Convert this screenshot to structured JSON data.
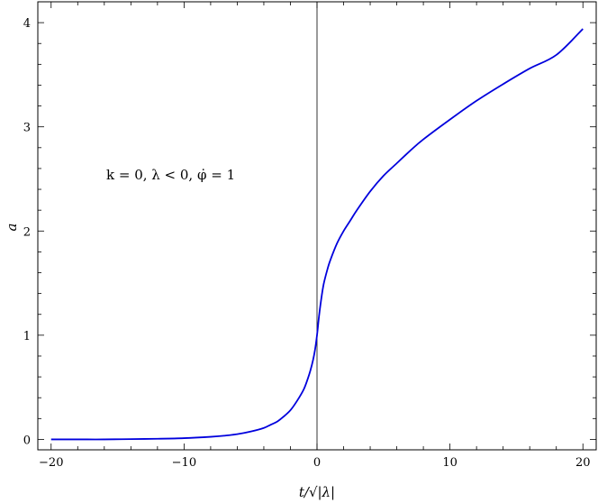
{
  "chart_data": {
    "type": "line",
    "xlabel": "t/√|λ|",
    "ylabel": "a",
    "xlim": [
      -21,
      21
    ],
    "ylim": [
      -0.1,
      4.2
    ],
    "grid": false,
    "legend": "none",
    "x_ticks": [
      -20,
      -10,
      0,
      10,
      20
    ],
    "y_ticks": [
      0,
      1,
      2,
      3,
      4
    ],
    "x_tick_labels": [
      "−20",
      "−10",
      "0",
      "10",
      "20"
    ],
    "y_tick_labels": [
      "0",
      "1",
      "2",
      "3",
      "4"
    ],
    "annotation": "k = 0,    λ < 0,    φ̇ = 1",
    "vertical_reference_line_x": 0,
    "series": [
      {
        "color": "#0000dd",
        "x": [
          -20,
          -18,
          -16,
          -14,
          -12,
          -10,
          -8,
          -7,
          -6,
          -5,
          -4,
          -3.5,
          -3,
          -2.5,
          -2,
          -1.5,
          -1,
          -0.7,
          -0.5,
          -0.3,
          -0.15,
          0,
          0.15,
          0.3,
          0.5,
          0.8,
          1,
          1.5,
          2,
          2.5,
          3,
          4,
          5,
          6,
          7,
          8,
          10,
          12,
          14,
          16,
          18,
          20
        ],
        "y": [
          0.0,
          0.0,
          0.0,
          0.003,
          0.006,
          0.012,
          0.025,
          0.035,
          0.05,
          0.075,
          0.11,
          0.14,
          0.17,
          0.22,
          0.28,
          0.37,
          0.48,
          0.58,
          0.66,
          0.76,
          0.86,
          1.0,
          1.18,
          1.33,
          1.49,
          1.64,
          1.72,
          1.88,
          2.0,
          2.1,
          2.2,
          2.38,
          2.53,
          2.65,
          2.77,
          2.88,
          3.07,
          3.25,
          3.41,
          3.56,
          3.69,
          3.94
        ]
      }
    ]
  }
}
